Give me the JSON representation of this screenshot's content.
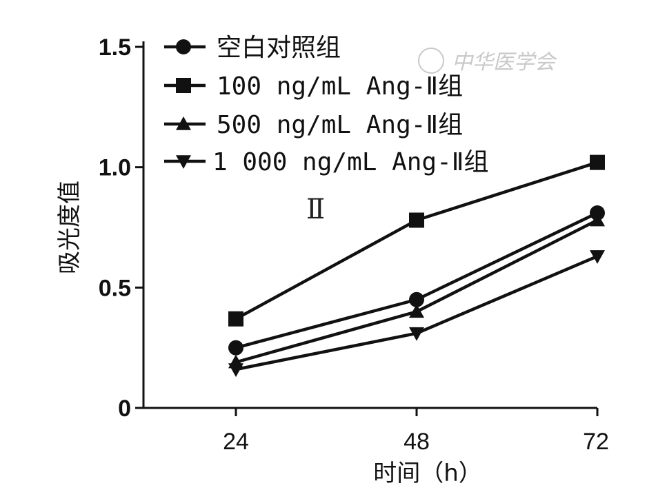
{
  "chart_data": {
    "type": "line",
    "title": "",
    "xlabel": "时间（h）",
    "ylabel": "吸光度值",
    "x": [
      24,
      48,
      72
    ],
    "x_tick_labels": [
      "24",
      "48",
      "72"
    ],
    "ylim": [
      0,
      1.5
    ],
    "y_ticks": [
      0,
      0.5,
      1.0,
      1.5
    ],
    "y_tick_labels": [
      "0",
      "0.5",
      "1.0",
      "1.5"
    ],
    "grid": false,
    "legend_position": "top-left",
    "series": [
      {
        "name": "空白对照组",
        "marker": "circle",
        "values": [
          0.25,
          0.45,
          0.81
        ]
      },
      {
        "name": "100 ng/mL Ang-Ⅱ组",
        "marker": "square",
        "values": [
          0.37,
          0.78,
          1.02
        ]
      },
      {
        "name": "500 ng/mL Ang-Ⅱ组",
        "marker": "triangle-up",
        "values": [
          0.19,
          0.4,
          0.78
        ]
      },
      {
        "name": "1 000 ng/mL Ang-Ⅱ组",
        "marker": "triangle-down",
        "values": [
          0.16,
          0.31,
          0.63
        ]
      }
    ],
    "annotations": [
      "Ⅱ"
    ]
  },
  "watermark": {
    "text": "中华医学会"
  },
  "colors": {
    "ink": "#111111",
    "watermark": "#c9c9c9"
  }
}
